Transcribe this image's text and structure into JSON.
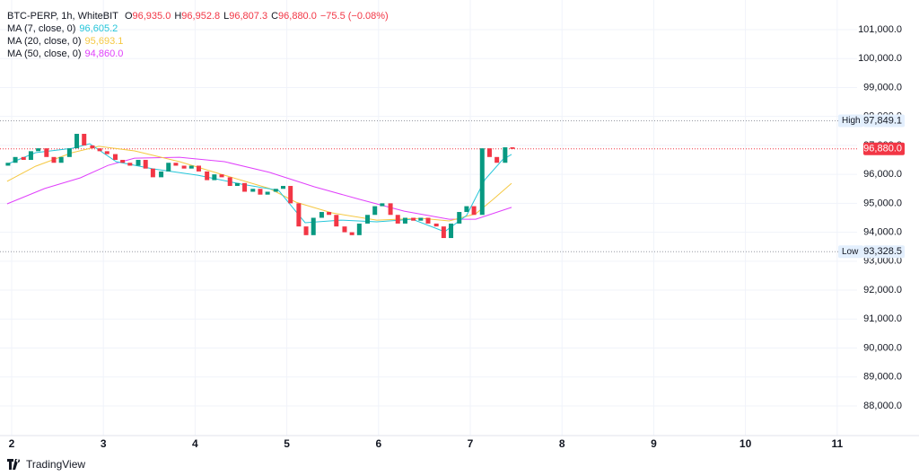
{
  "header": {
    "title": "BTC-PERP, 1h, WhiteBIT",
    "ohlc": [
      {
        "key": "O",
        "value_label": "96,935.0"
      },
      {
        "key": "H",
        "value_label": "96,952.8"
      },
      {
        "key": "L",
        "value_label": "96,807.3"
      },
      {
        "key": "C",
        "value_label": "96,880.0"
      }
    ],
    "change": "−75.5 (−0.08%)"
  },
  "branding": "TradingView",
  "chart_data": {
    "type": "candlestick",
    "up_color": "#089981",
    "down_color": "#f23645",
    "x": [
      1.96,
      2.04,
      2.13,
      2.21,
      2.29,
      2.38,
      2.46,
      2.54,
      2.63,
      2.71,
      2.79,
      2.88,
      2.96,
      3.04,
      3.13,
      3.21,
      3.29,
      3.38,
      3.46,
      3.54,
      3.63,
      3.71,
      3.79,
      3.88,
      3.96,
      4.04,
      4.13,
      4.21,
      4.29,
      4.38,
      4.46,
      4.54,
      4.63,
      4.71,
      4.79,
      4.88,
      4.96,
      5.04,
      5.13,
      5.21,
      5.29,
      5.38,
      5.46,
      5.54,
      5.63,
      5.71,
      5.79,
      5.88,
      5.96,
      6.04,
      6.13,
      6.21,
      6.29,
      6.38,
      6.46,
      6.54,
      6.63,
      6.71,
      6.79,
      6.88,
      6.96,
      7.04,
      7.13,
      7.21,
      7.29,
      7.38,
      7.46
    ],
    "open": [
      96300,
      96400,
      96600,
      96500,
      96800,
      96900,
      96600,
      96400,
      96600,
      96900,
      97400,
      97000,
      96900,
      96800,
      96700,
      96500,
      96400,
      96300,
      96500,
      96200,
      95900,
      96100,
      96400,
      96300,
      96200,
      96300,
      96100,
      95800,
      96000,
      95900,
      95600,
      95700,
      95400,
      95500,
      95300,
      95400,
      95500,
      95600,
      95000,
      94200,
      93900,
      94500,
      94700,
      94600,
      94200,
      94000,
      93900,
      94300,
      94600,
      94900,
      95000,
      94600,
      94300,
      94500,
      94400,
      94500,
      94300,
      94200,
      93800,
      94300,
      94700,
      94900,
      94600,
      96900,
      96600,
      96400,
      96935
    ],
    "high": {
      "label": "High",
      "value": 97849.1,
      "value_label": "97,849.1"
    },
    "low": {
      "label": "Low",
      "value": 93328.5,
      "value_label": "93,328.5"
    },
    "close": [
      96400,
      96600,
      96500,
      96800,
      96900,
      96600,
      96400,
      96600,
      96900,
      97400,
      97000,
      96900,
      96800,
      96700,
      96500,
      96400,
      96300,
      96500,
      96200,
      95900,
      96100,
      96400,
      96300,
      96200,
      96300,
      96100,
      95800,
      96000,
      95900,
      95600,
      95700,
      95400,
      95500,
      95300,
      95400,
      95500,
      95600,
      95000,
      94200,
      93900,
      94500,
      94700,
      94600,
      94200,
      94000,
      93900,
      94300,
      94600,
      94900,
      95000,
      94600,
      94300,
      94500,
      94400,
      94500,
      94300,
      94200,
      93800,
      94300,
      94700,
      94900,
      94600,
      96900,
      96600,
      96400,
      96935,
      96880
    ],
    "series": [
      {
        "name": "MA (7, close, 0)",
        "legend_value": "96,605.2",
        "color": "#26c6da",
        "x": [
          1.95,
          2.26,
          2.66,
          2.85,
          3.14,
          3.54,
          4.03,
          4.51,
          4.91,
          5.2,
          5.59,
          5.98,
          6.37,
          6.72,
          6.96,
          7.16,
          7.35,
          7.45
        ],
        "values": [
          96350,
          96750,
          96900,
          97060,
          96440,
          96190,
          95970,
          95660,
          95450,
          94330,
          94420,
          94360,
          94450,
          94020,
          94580,
          95820,
          96500,
          96690
        ]
      },
      {
        "name": "MA (20, close, 0)",
        "legend_value": "95,693.1",
        "color": "#f5c842",
        "x": [
          1.95,
          2.26,
          2.66,
          2.95,
          3.34,
          3.83,
          4.32,
          4.81,
          5.1,
          5.49,
          5.98,
          6.47,
          6.77,
          7.06,
          7.25,
          7.45
        ],
        "values": [
          95760,
          96280,
          96750,
          96970,
          96810,
          96440,
          95970,
          95510,
          95040,
          94670,
          94420,
          94480,
          94390,
          94640,
          95140,
          95690
        ]
      },
      {
        "name": "MA (50, close, 0)",
        "legend_value": "94,860.0",
        "color": "#e040fb",
        "x": [
          1.95,
          2.36,
          2.75,
          3.05,
          3.34,
          3.83,
          4.32,
          4.81,
          5.3,
          5.79,
          6.28,
          6.77,
          7.06,
          7.45
        ],
        "values": [
          94980,
          95510,
          95880,
          96310,
          96560,
          96590,
          96440,
          96070,
          95570,
          95140,
          94730,
          94450,
          94450,
          94860
        ]
      }
    ],
    "xlim": [
      1.873,
      11.217
    ],
    "xticks": [
      2,
      3,
      4,
      5,
      6,
      7,
      8,
      9,
      10,
      11
    ],
    "ylim": [
      86975,
      102024
    ],
    "yticks": [
      {
        "value": 88000,
        "label": "88,000.0"
      },
      {
        "value": 89000,
        "label": "89,000.0"
      },
      {
        "value": 90000,
        "label": "90,000.0"
      },
      {
        "value": 91000,
        "label": "91,000.0"
      },
      {
        "value": 92000,
        "label": "92,000.0"
      },
      {
        "value": 93000,
        "label": "93,000.0"
      },
      {
        "value": 94000,
        "label": "94,000.0"
      },
      {
        "value": 95000,
        "label": "95,000.0"
      },
      {
        "value": 96000,
        "label": "96,000.0"
      },
      {
        "value": 97000,
        "label": "97,000.0"
      },
      {
        "value": 98000,
        "label": "98,000.0"
      },
      {
        "value": 99000,
        "label": "99,000.0"
      },
      {
        "value": 100000,
        "label": "100,000.0"
      },
      {
        "value": 101000,
        "label": "101,000.0"
      }
    ],
    "grid": true,
    "last_price": {
      "value": 96880,
      "label": "96,880.0"
    }
  }
}
